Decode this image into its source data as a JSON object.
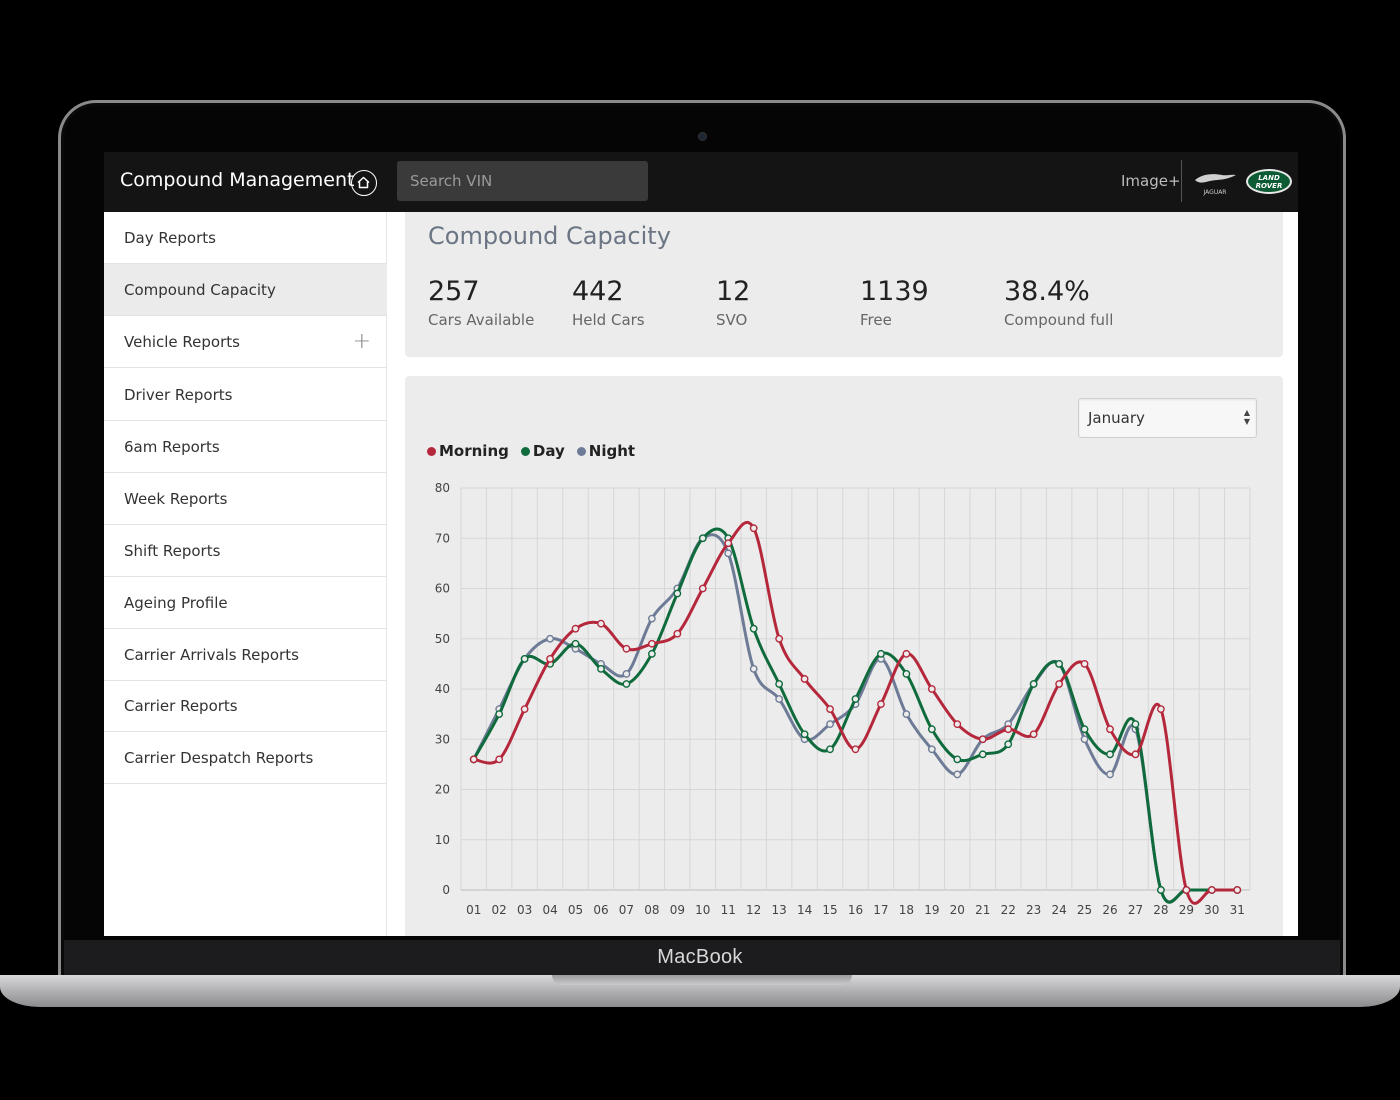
{
  "device": {
    "brand": "MacBook"
  },
  "header": {
    "title": "Compound Management",
    "search_placeholder": "Search VIN",
    "image_plus": "Image+",
    "jaguar_text": "JAGUAR",
    "landrover_text": "LAND ROVER"
  },
  "sidebar": {
    "items": [
      {
        "label": "Day Reports"
      },
      {
        "label": "Compound Capacity"
      },
      {
        "label": "Vehicle Reports",
        "expand": "+"
      },
      {
        "label": "Driver Reports"
      },
      {
        "label": "6am Reports"
      },
      {
        "label": "Week Reports"
      },
      {
        "label": "Shift Reports"
      },
      {
        "label": "Ageing Profile"
      },
      {
        "label": "Carrier Arrivals Reports"
      },
      {
        "label": "Carrier Reports"
      },
      {
        "label": "Carrier Despatch Reports"
      }
    ]
  },
  "capacity": {
    "title": "Compound Capacity",
    "stats": [
      {
        "value": "257",
        "label": "Cars Available"
      },
      {
        "value": "442",
        "label": "Held Cars"
      },
      {
        "value": "12",
        "label": "SVO"
      },
      {
        "value": "1139",
        "label": "Free"
      },
      {
        "value": "38.4%",
        "label": "Compound full"
      }
    ]
  },
  "filter": {
    "month": "January"
  },
  "colors": {
    "morning": "#b5283c",
    "day": "#0f6b3c",
    "night": "#6e7b96"
  },
  "chart_data": {
    "type": "line",
    "categories": [
      "01",
      "02",
      "03",
      "04",
      "05",
      "06",
      "07",
      "08",
      "09",
      "10",
      "11",
      "12",
      "13",
      "14",
      "15",
      "16",
      "17",
      "18",
      "19",
      "20",
      "21",
      "22",
      "23",
      "24",
      "25",
      "26",
      "27",
      "28",
      "29",
      "30",
      "31"
    ],
    "ylim": [
      0,
      80
    ],
    "yticks": [
      0,
      10,
      20,
      30,
      40,
      50,
      60,
      70,
      80
    ],
    "grid": true,
    "legend_position": "top-left",
    "series": [
      {
        "name": "Morning",
        "values": [
          26,
          26,
          36,
          46,
          52,
          53,
          48,
          49,
          51,
          60,
          69,
          72,
          50,
          42,
          36,
          28,
          37,
          47,
          40,
          33,
          30,
          32,
          31,
          41,
          45,
          32,
          27,
          36,
          0,
          0,
          0
        ]
      },
      {
        "name": "Day",
        "values": [
          26,
          35,
          46,
          45,
          49,
          44,
          41,
          47,
          59,
          70,
          70,
          52,
          41,
          31,
          28,
          38,
          47,
          43,
          32,
          26,
          27,
          29,
          41,
          45,
          32,
          27,
          33,
          0,
          0,
          0,
          0
        ]
      },
      {
        "name": "Night",
        "values": [
          26,
          36,
          46,
          50,
          48,
          45,
          43,
          54,
          60,
          70,
          67,
          44,
          38,
          30,
          33,
          37,
          46,
          35,
          28,
          23,
          30,
          33,
          41,
          45,
          30,
          23,
          32,
          0,
          0,
          0,
          0
        ]
      }
    ]
  }
}
